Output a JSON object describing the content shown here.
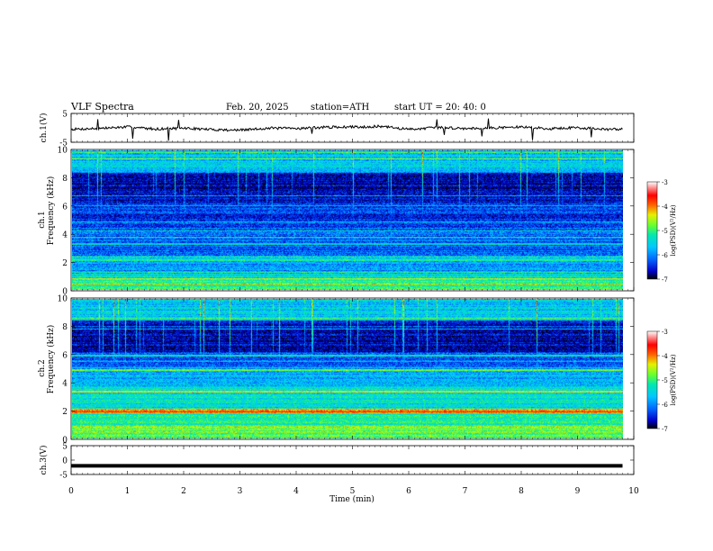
{
  "header": {
    "title": "VLF  Spectra",
    "date": "Feb. 20, 2025",
    "station": "station=ATH",
    "start": "start  UT  =   20: 40: 0"
  },
  "colors": {
    "spectrogram_scale": [
      "#000000",
      "#0000c8",
      "#0064ff",
      "#00c8ff",
      "#00e6b4",
      "#64ff32",
      "#e6f000",
      "#ff6400",
      "#ff0000",
      "#ffffff"
    ]
  },
  "chart_data": [
    {
      "type": "line",
      "title": "",
      "ylabel": "ch.1(V)",
      "ylim": [
        -5,
        5
      ],
      "yticks": [
        "5",
        "-5"
      ],
      "xlim": [
        0,
        10
      ],
      "series": [
        {
          "x": [
            0,
            0.5,
            1,
            1.5,
            2,
            2.5,
            3,
            3.5,
            4,
            4.5,
            5,
            5.5,
            6,
            6.5,
            7,
            7.5,
            8,
            8.5,
            9,
            9.5,
            9.8
          ],
          "values": [
            -0.5,
            -0.2,
            0.3,
            -0.4,
            -0.1,
            -0.6,
            -0.8,
            -0.1,
            -0.2,
            0.2,
            0.3,
            0.5,
            -0.5,
            0.1,
            -0.2,
            0.0,
            0.3,
            -0.3,
            0.1,
            -0.6,
            -0.4
          ]
        }
      ]
    },
    {
      "type": "heatmap",
      "ylabel": "ch.1\nFrequency (kHz)",
      "ylim": [
        0,
        10
      ],
      "yticks": [
        "10",
        "8",
        "6",
        "4",
        "2",
        "0"
      ],
      "xlim": [
        0,
        10
      ],
      "colorbar": {
        "label": "log(PSD)(V²/Hz)",
        "ticks": [
          "-3",
          "-4",
          "-5",
          "-6",
          "-7"
        ],
        "range": [
          -7,
          -3
        ]
      }
    },
    {
      "type": "heatmap",
      "ylabel": "ch.2\nFrequency (kHz)",
      "ylim": [
        0,
        10
      ],
      "yticks": [
        "10",
        "8",
        "6",
        "4",
        "2",
        "0"
      ],
      "xlim": [
        0,
        10
      ],
      "colorbar": {
        "label": "log(PSD)(V²/Hz)",
        "ticks": [
          "-3",
          "-4",
          "-5",
          "-6",
          "-7"
        ],
        "range": [
          -7,
          -3
        ]
      }
    },
    {
      "type": "line",
      "ylabel": "ch.3(V)",
      "ylim": [
        -5,
        5
      ],
      "yticks": [
        "5",
        "0",
        "-5"
      ],
      "xlim": [
        0,
        10
      ],
      "xlabel": "Time  (min)",
      "xticks": [
        "0",
        "1",
        "2",
        "3",
        "4",
        "5",
        "6",
        "7",
        "8",
        "9",
        "10"
      ],
      "series": [
        {
          "x": [
            0,
            9.8
          ],
          "values": [
            -2,
            -2
          ]
        }
      ]
    }
  ]
}
